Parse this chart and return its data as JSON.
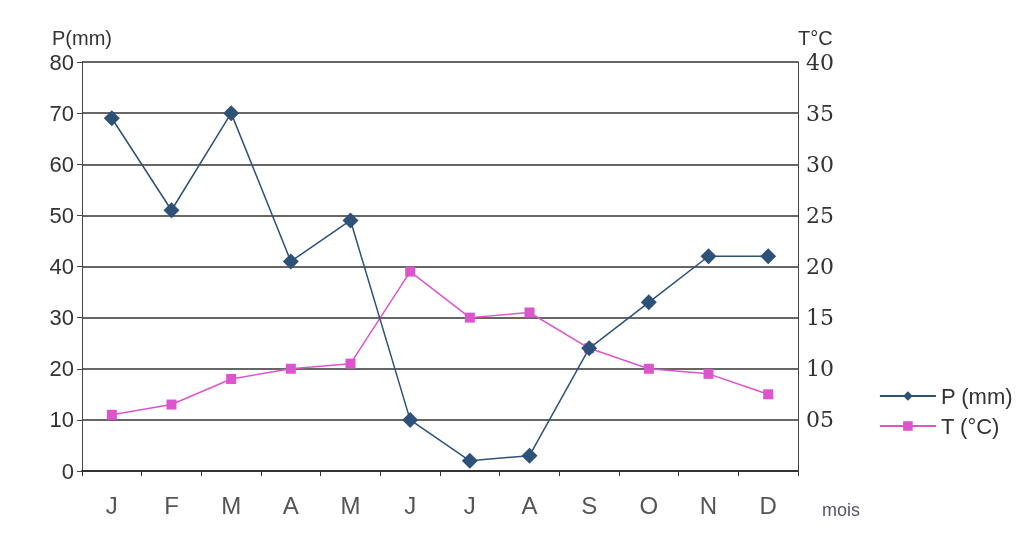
{
  "chart_data": {
    "type": "line",
    "ylabel": "P(mm)",
    "y2label": "T°C",
    "xlabel": "mois",
    "categories": [
      "J",
      "F",
      "M",
      "A",
      "M",
      "J",
      "J",
      "A",
      "S",
      "O",
      "N",
      "D"
    ],
    "series": [
      {
        "name": "P (mm)",
        "color": "#2e5177",
        "marker": "diamond",
        "values": [
          69,
          51,
          70,
          41,
          49,
          10,
          2,
          3,
          24,
          33,
          42,
          42
        ]
      },
      {
        "name": "T (°C)",
        "color": "#dd55cc",
        "marker": "square",
        "axis": "y2",
        "values": [
          5.5,
          6.5,
          9,
          10,
          10.5,
          19.5,
          15,
          15.5,
          12,
          10,
          9.5,
          7.5
        ]
      }
    ],
    "ylim": [
      0,
      80
    ],
    "yticks": [
      0,
      10,
      20,
      30,
      40,
      50,
      60,
      70,
      80
    ],
    "y2lim": [
      0,
      40
    ],
    "y2ticks": [
      {
        "value": 5,
        "label": "05"
      },
      10,
      15,
      20,
      25,
      30,
      35,
      40
    ],
    "grid": "y",
    "legend": "right"
  }
}
